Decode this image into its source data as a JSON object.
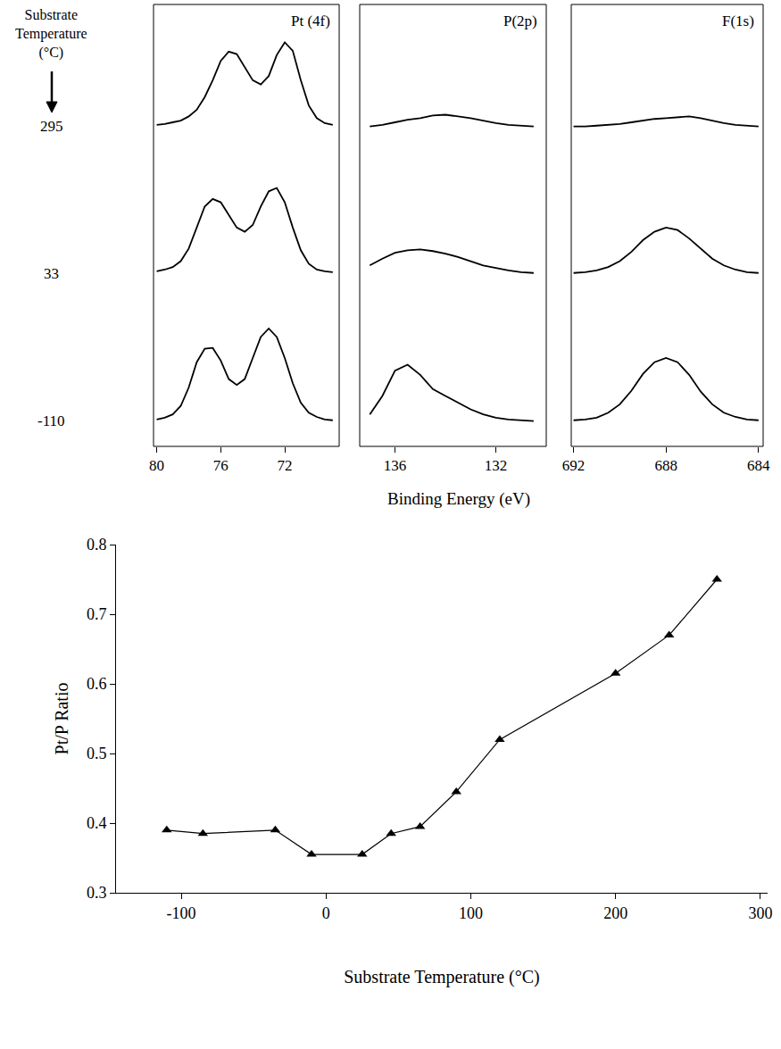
{
  "chart_data": [
    {
      "type": "line",
      "row_heading": "Substrate Temperature (°C)",
      "rows": [
        "295",
        "33",
        "-110"
      ],
      "xlabel": "Binding Energy (eV)",
      "ylim": [
        -0.3,
        1.45
      ],
      "tick_labels": "x",
      "color": "#000000",
      "panels": [
        {
          "title": "Pt (4f)",
          "xlim": [
            80.2,
            68.6
          ],
          "xticks": [
            80,
            76,
            72
          ],
          "x": [
            80,
            79.5,
            79,
            78.5,
            78,
            77.5,
            77,
            76.5,
            76,
            75.5,
            75,
            74.5,
            74,
            73.5,
            73,
            72.5,
            72,
            71.5,
            71,
            70.5,
            70,
            69.5,
            69
          ],
          "values": [
            [
              0.02,
              0.03,
              0.05,
              0.07,
              0.12,
              0.2,
              0.35,
              0.55,
              0.78,
              0.89,
              0.86,
              0.7,
              0.55,
              0.5,
              0.6,
              0.85,
              1.0,
              0.9,
              0.55,
              0.25,
              0.1,
              0.04,
              0.02
            ],
            [
              0.03,
              0.05,
              0.08,
              0.15,
              0.3,
              0.55,
              0.8,
              0.89,
              0.85,
              0.7,
              0.55,
              0.5,
              0.58,
              0.8,
              0.98,
              1.02,
              0.85,
              0.55,
              0.28,
              0.12,
              0.05,
              0.03,
              0.02
            ],
            [
              0.02,
              0.04,
              0.08,
              0.18,
              0.4,
              0.7,
              0.86,
              0.87,
              0.72,
              0.5,
              0.43,
              0.5,
              0.75,
              1.0,
              1.1,
              1.0,
              0.75,
              0.45,
              0.22,
              0.1,
              0.05,
              0.02,
              0.01
            ]
          ]
        },
        {
          "title": "P(2p)",
          "xlim": [
            137.4,
            130
          ],
          "xticks": [
            136,
            132
          ],
          "x": [
            137,
            136.5,
            136,
            135.5,
            135,
            134.5,
            134,
            133.5,
            133,
            132.5,
            132,
            131.5,
            131,
            130.5
          ],
          "values": [
            [
              0.0,
              0.02,
              0.05,
              0.08,
              0.1,
              0.13,
              0.14,
              0.12,
              0.1,
              0.07,
              0.04,
              0.02,
              0.01,
              0.0
            ],
            [
              0.1,
              0.18,
              0.25,
              0.28,
              0.29,
              0.27,
              0.24,
              0.2,
              0.15,
              0.1,
              0.07,
              0.04,
              0.02,
              0.01
            ],
            [
              0.08,
              0.3,
              0.6,
              0.67,
              0.55,
              0.38,
              0.3,
              0.22,
              0.14,
              0.08,
              0.04,
              0.02,
              0.01,
              0.0
            ]
          ]
        },
        {
          "title": "F(1s)",
          "xlim": [
            692.1,
            683.8
          ],
          "xticks": [
            692,
            688,
            684
          ],
          "x": [
            692,
            691.5,
            691,
            690.5,
            690,
            689.5,
            689,
            688.5,
            688,
            687.5,
            687,
            686.5,
            686,
            685.5,
            685,
            684.5,
            684
          ],
          "values": [
            [
              0.0,
              0.0,
              0.01,
              0.02,
              0.03,
              0.05,
              0.07,
              0.09,
              0.1,
              0.11,
              0.12,
              0.1,
              0.07,
              0.04,
              0.02,
              0.01,
              0.0
            ],
            [
              0.01,
              0.02,
              0.04,
              0.08,
              0.15,
              0.26,
              0.4,
              0.5,
              0.55,
              0.52,
              0.42,
              0.3,
              0.18,
              0.1,
              0.05,
              0.02,
              0.01
            ],
            [
              0.01,
              0.02,
              0.04,
              0.1,
              0.2,
              0.36,
              0.56,
              0.7,
              0.75,
              0.7,
              0.55,
              0.35,
              0.2,
              0.1,
              0.05,
              0.02,
              0.01
            ]
          ]
        }
      ]
    },
    {
      "type": "line",
      "xlabel": "Substrate Temperature (°C)",
      "ylabel": "Pt/P Ratio",
      "x": [
        -110,
        -85,
        -35,
        -10,
        25,
        45,
        65,
        90,
        120,
        200,
        237,
        270
      ],
      "values": [
        0.39,
        0.385,
        0.39,
        0.355,
        0.355,
        0.385,
        0.395,
        0.445,
        0.52,
        0.615,
        0.67,
        0.75
      ],
      "xlim": [
        -145,
        305
      ],
      "xticks": [
        -100,
        0,
        100,
        200,
        300
      ],
      "ylim": [
        0.3,
        0.8
      ],
      "yticks": [
        0.3,
        0.4,
        0.5,
        0.6,
        0.7,
        0.8
      ],
      "marker": "triangle-up",
      "color": "#000000",
      "grid": false
    }
  ]
}
